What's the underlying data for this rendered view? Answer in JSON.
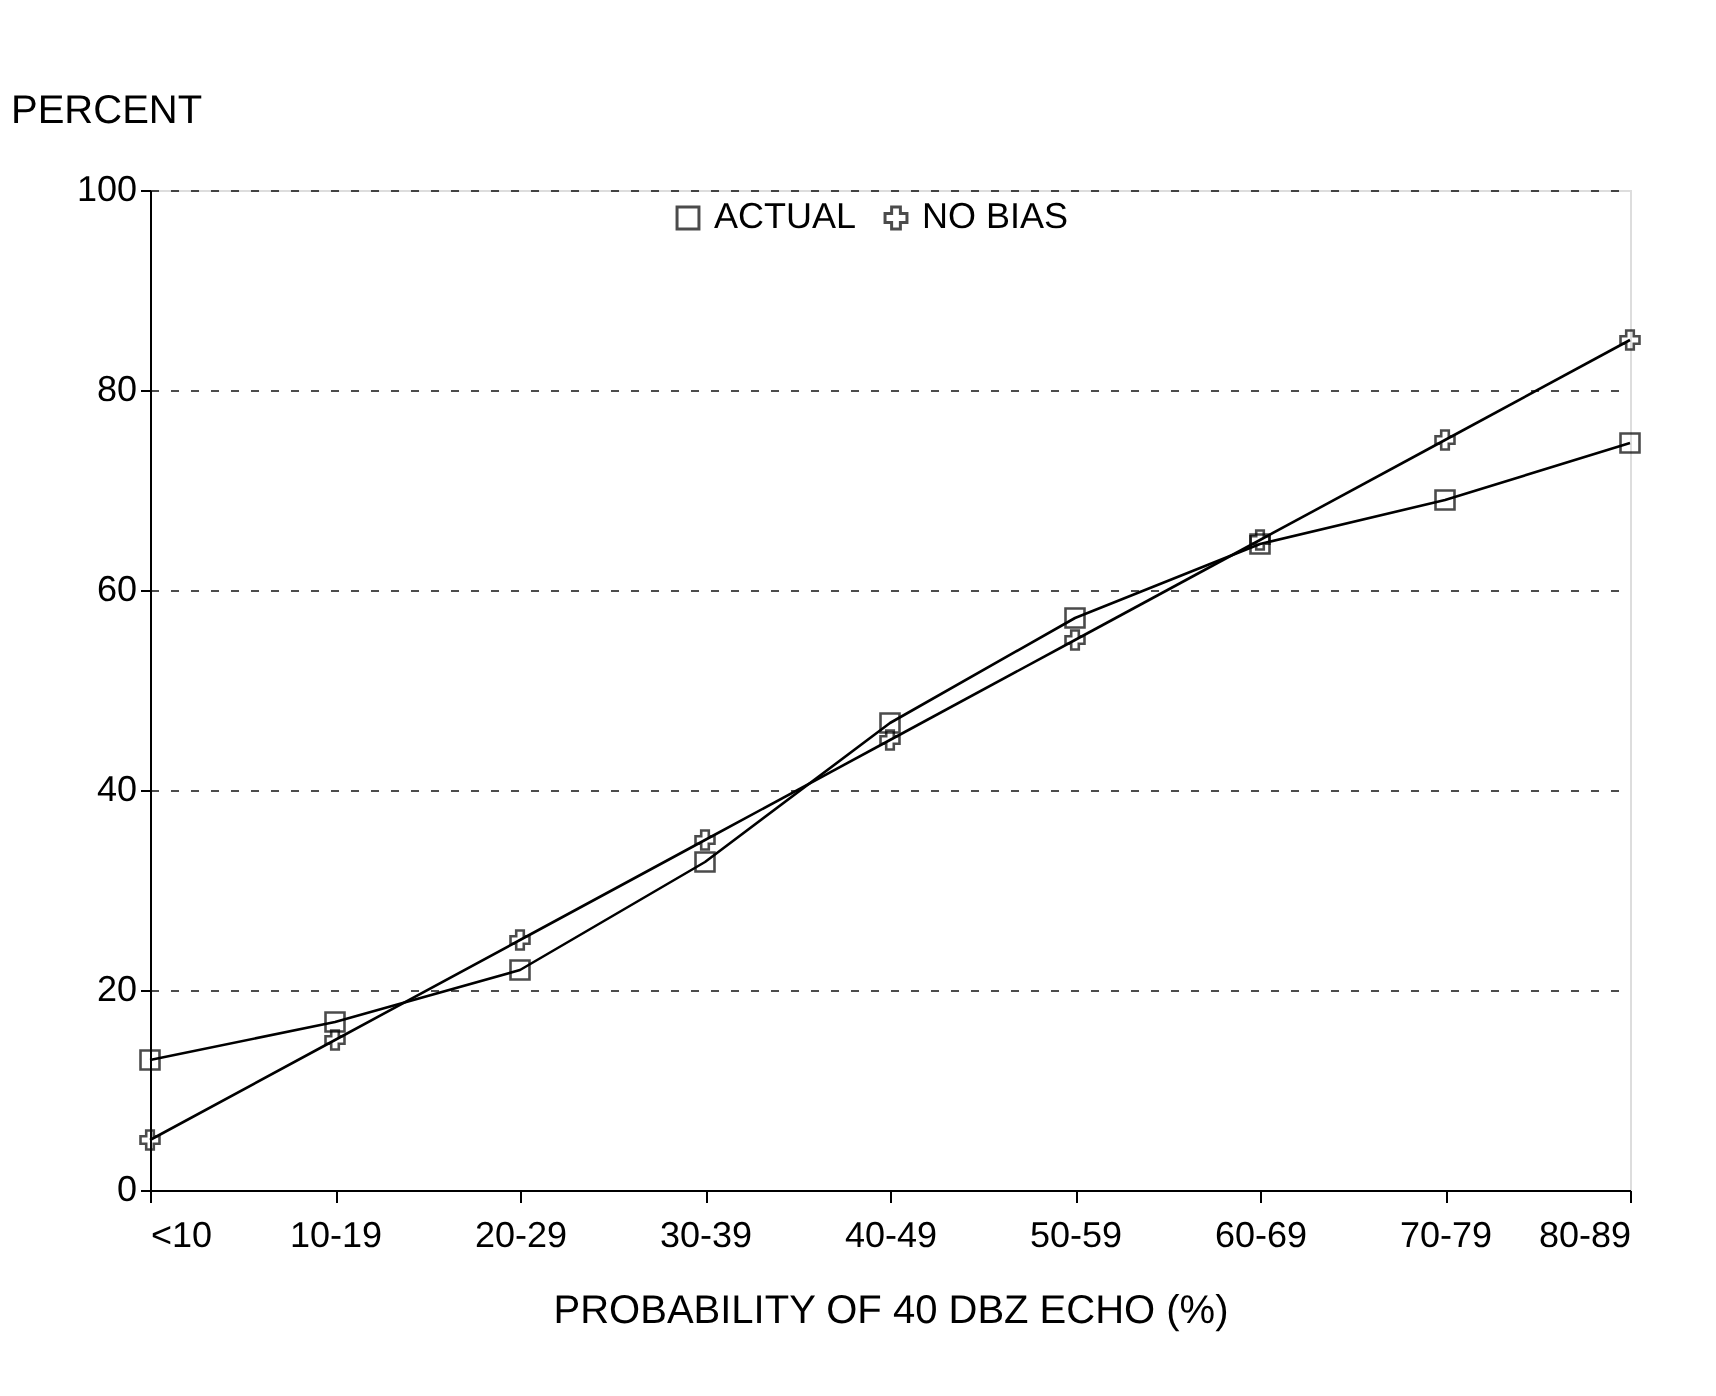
{
  "chart_data": {
    "type": "line",
    "xlabel": "PROBABILITY OF 40 DBZ ECHO (%)",
    "ylabel": "PERCENT",
    "categories": [
      "<10",
      "10-19",
      "20-29",
      "30-39",
      "40-49",
      "50-59",
      "60-69",
      "70-79",
      "80-89"
    ],
    "series": [
      {
        "name": "ACTUAL",
        "color": "#000000",
        "marker": "square",
        "values": [
          13,
          16.8,
          22,
          32.8,
          46.7,
          57.2,
          64.6,
          69,
          74.7
        ]
      },
      {
        "name": "NO BIAS",
        "color": "#000000",
        "marker": "cross",
        "values": [
          5,
          15,
          25,
          35,
          45,
          55,
          65,
          75,
          85
        ]
      }
    ],
    "ylim": [
      0,
      100
    ],
    "yticks": [
      0,
      20,
      40,
      60,
      80,
      100
    ],
    "grid": "y",
    "legend": "top",
    "line_style": "solid"
  }
}
